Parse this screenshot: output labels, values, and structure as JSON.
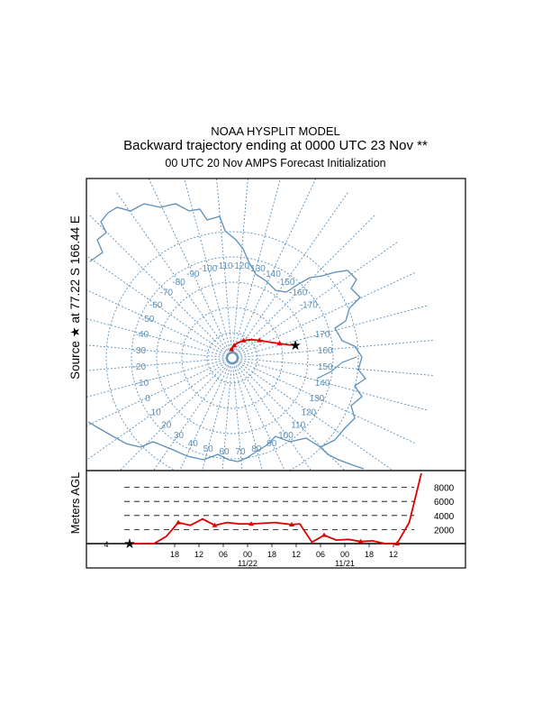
{
  "header": {
    "model": "NOAA HYSPLIT MODEL",
    "title": "Backward trajectory ending at 0000 UTC 23 Nov **",
    "subtitle": "00 UTC 20 Nov    AMPS  Forecast Initialization"
  },
  "map": {
    "source_label": "Source  ★  at   77.22 S  166.44 E",
    "meridian_labels": [
      "-170",
      "-160",
      "-150",
      "-140",
      "-130",
      "-120",
      "-110",
      "-100",
      "-90",
      "-80",
      "-70",
      "-60",
      "-50",
      "-40",
      "-30",
      "-20",
      "-10",
      "0",
      "10",
      "20",
      "30",
      "40",
      "50",
      "60",
      "70",
      "80",
      "90",
      "100",
      "110",
      "120",
      "130",
      "140",
      "150",
      "160",
      "170"
    ],
    "colors": {
      "grid": "#5b8fb9",
      "coast": "#5b8fb9",
      "trajectory": "#e00000"
    }
  },
  "chart_data": {
    "type": "line",
    "title": "Backward trajectory ending at 0000 UTC 23 Nov **",
    "ylabel": "Meters AGL",
    "y_ticks": [
      "2000",
      "4000",
      "6000",
      "8000"
    ],
    "x_tick_labels": [
      "18",
      "12",
      "06",
      "00",
      "18",
      "12",
      "06",
      "00",
      "18",
      "12"
    ],
    "date_labels": [
      "11/22",
      "11/21"
    ],
    "ylim": [
      0,
      10000
    ],
    "grid": "dashed horizontal at 2000 m intervals",
    "series": [
      {
        "color": "#e00000",
        "hours_before_end": [
          0,
          -6,
          -9,
          -12,
          -15,
          -18,
          -21,
          -24,
          -27,
          -30,
          -33,
          -36,
          -40,
          -42,
          -45,
          -48,
          -51,
          -54,
          -57,
          -60,
          -63,
          -66,
          -69,
          -72
        ],
        "height_m": [
          0,
          0,
          1000,
          3000,
          2600,
          3500,
          2600,
          3000,
          2800,
          2800,
          2900,
          3000,
          2700,
          2800,
          200,
          1200,
          500,
          600,
          300,
          400,
          0,
          0,
          3000,
          10000
        ]
      }
    ],
    "trajectory_map": {
      "latitude_deg": [
        -77.22,
        -78.5,
        -80.2,
        -82.0,
        -83.6,
        -84.9,
        -85.9,
        -86.8,
        -87.5,
        -88.0,
        -88.3,
        -88.4
      ],
      "longitude_deg": [
        166.44,
        168.0,
        172.0,
        178.0,
        -172.0,
        -160.0,
        -148.0,
        -135.0,
        -124.0,
        -116.0,
        -110.0,
        -106.0
      ]
    }
  }
}
